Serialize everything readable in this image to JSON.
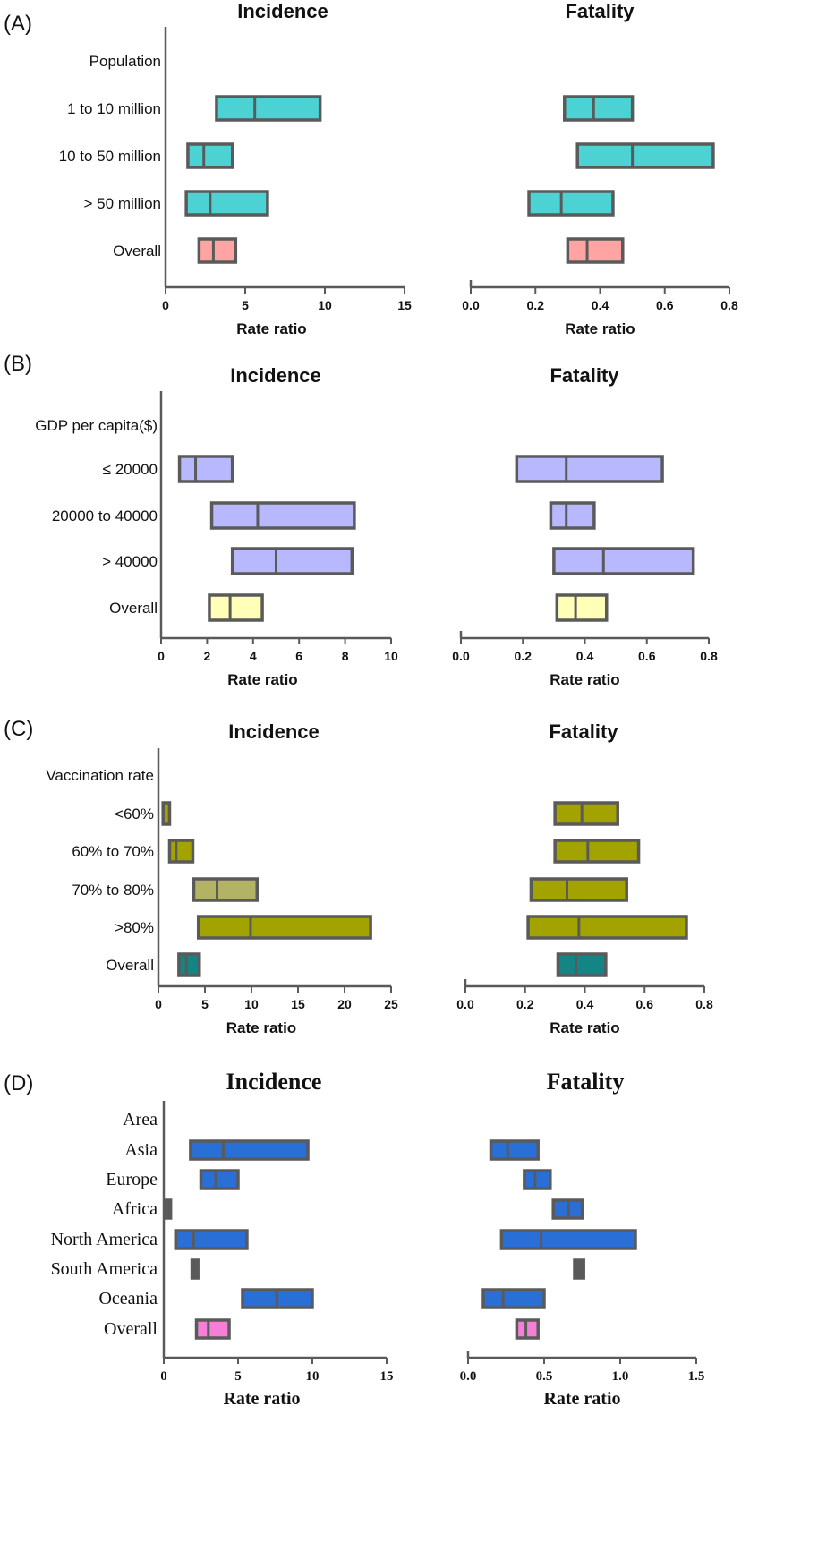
{
  "style": {
    "axis_color": "#5a5a5a",
    "box_stroke": "#5a5a5a"
  },
  "panels": [
    {
      "letter": "(A)",
      "category_header": "Population",
      "categories": [
        "1 to 10 million",
        "10 to 50 million",
        "> 50 million",
        "Overall"
      ],
      "charts": [
        {
          "title": "Incidence",
          "xlabel": "Rate ratio",
          "xlim": [
            0,
            15
          ],
          "ticks": [
            0,
            5,
            10,
            15
          ],
          "tick_labels": [
            "0",
            "5",
            "10",
            "15"
          ],
          "boxes": [
            {
              "category": "1 to 10 million",
              "low": 3.2,
              "mid": 5.6,
              "high": 9.7,
              "color": "#4dd2d3"
            },
            {
              "category": "10 to 50 million",
              "low": 1.4,
              "mid": 2.4,
              "high": 4.2,
              "color": "#4dd2d3"
            },
            {
              "category": "> 50 million",
              "low": 1.3,
              "mid": 2.8,
              "high": 6.4,
              "color": "#4dd2d3"
            },
            {
              "category": "Overall",
              "low": 2.1,
              "mid": 3.0,
              "high": 4.4,
              "color": "#ffa3a3"
            }
          ]
        },
        {
          "title": "Fatality",
          "xlabel": "Rate ratio",
          "xlim": [
            0,
            0.8
          ],
          "ticks": [
            0,
            0.2,
            0.4,
            0.6,
            0.8
          ],
          "tick_labels": [
            "0.0",
            "0.2",
            "0.4",
            "0.6",
            "0.8"
          ],
          "boxes": [
            {
              "category": "1 to 10 million",
              "low": 0.29,
              "mid": 0.38,
              "high": 0.5,
              "color": "#4dd2d3"
            },
            {
              "category": "10 to 50 million",
              "low": 0.33,
              "mid": 0.5,
              "high": 0.75,
              "color": "#4dd2d3"
            },
            {
              "category": "> 50 million",
              "low": 0.18,
              "mid": 0.28,
              "high": 0.44,
              "color": "#4dd2d3"
            },
            {
              "category": "Overall",
              "low": 0.3,
              "mid": 0.36,
              "high": 0.47,
              "color": "#ffa3a3"
            }
          ]
        }
      ]
    },
    {
      "letter": "(B)",
      "category_header": "GDP per capita($)",
      "categories": [
        "≤ 20000",
        "20000 to 40000",
        "> 40000",
        "Overall"
      ],
      "charts": [
        {
          "title": "Incidence",
          "xlabel": "Rate ratio",
          "xlim": [
            0,
            10
          ],
          "ticks": [
            0,
            2,
            4,
            6,
            8,
            10
          ],
          "tick_labels": [
            "0",
            "2",
            "4",
            "6",
            "8",
            "10"
          ],
          "boxes": [
            {
              "category": "≤ 20000",
              "low": 0.8,
              "mid": 1.5,
              "high": 3.1,
              "color": "#b8b8ff"
            },
            {
              "category": "20000 to 40000",
              "low": 2.2,
              "mid": 4.2,
              "high": 8.4,
              "color": "#b8b8ff"
            },
            {
              "category": "> 40000",
              "low": 3.1,
              "mid": 5.0,
              "high": 8.3,
              "color": "#b8b8ff"
            },
            {
              "category": "Overall",
              "low": 2.1,
              "mid": 3.0,
              "high": 4.4,
              "color": "#ffffb8"
            }
          ]
        },
        {
          "title": "Fatality",
          "xlabel": "Rate ratio",
          "xlim": [
            0,
            0.8
          ],
          "ticks": [
            0,
            0.2,
            0.4,
            0.6,
            0.8
          ],
          "tick_labels": [
            "0.0",
            "0.2",
            "0.4",
            "0.6",
            "0.8"
          ],
          "boxes": [
            {
              "category": "≤ 20000",
              "low": 0.18,
              "mid": 0.34,
              "high": 0.65,
              "color": "#b8b8ff"
            },
            {
              "category": "20000 to 40000",
              "low": 0.29,
              "mid": 0.34,
              "high": 0.43,
              "color": "#b8b8ff"
            },
            {
              "category": "> 40000",
              "low": 0.3,
              "mid": 0.46,
              "high": 0.75,
              "color": "#b8b8ff"
            },
            {
              "category": "Overall",
              "low": 0.31,
              "mid": 0.37,
              "high": 0.47,
              "color": "#ffffb8"
            }
          ]
        }
      ]
    },
    {
      "letter": "(C)",
      "category_header": "Vaccination rate",
      "categories": [
        "<60%",
        "60% to 70%",
        "70% to 80%",
        ">80%",
        "Overall"
      ],
      "charts": [
        {
          "title": "Incidence",
          "xlabel": "Rate ratio",
          "xlim": [
            0,
            25
          ],
          "ticks": [
            0,
            5,
            10,
            15,
            20,
            25
          ],
          "tick_labels": [
            "0",
            "5",
            "10",
            "15",
            "20",
            "25"
          ],
          "boxes": [
            {
              "category": "<60%",
              "low": 0.5,
              "mid": 0.9,
              "high": 1.2,
              "color": "#a3a300"
            },
            {
              "category": "60% to 70%",
              "low": 1.2,
              "mid": 1.9,
              "high": 3.7,
              "color": "#a3a300"
            },
            {
              "category": "70% to 80%",
              "low": 3.8,
              "mid": 6.3,
              "high": 10.6,
              "color": "#b3b366"
            },
            {
              "category": ">80%",
              "low": 4.3,
              "mid": 9.9,
              "high": 22.8,
              "color": "#a3a300"
            },
            {
              "category": "Overall",
              "low": 2.2,
              "mid": 3.0,
              "high": 4.4,
              "color": "#138585"
            }
          ]
        },
        {
          "title": "Fatality",
          "xlabel": "Rate ratio",
          "xlim": [
            0,
            0.8
          ],
          "ticks": [
            0,
            0.2,
            0.4,
            0.6,
            0.8
          ],
          "tick_labels": [
            "0.0",
            "0.2",
            "0.4",
            "0.6",
            "0.8"
          ],
          "boxes": [
            {
              "category": "<60%",
              "low": 0.3,
              "mid": 0.39,
              "high": 0.51,
              "color": "#a3a300"
            },
            {
              "category": "60% to 70%",
              "low": 0.3,
              "mid": 0.41,
              "high": 0.58,
              "color": "#a3a300"
            },
            {
              "category": "70% to 80%",
              "low": 0.22,
              "mid": 0.34,
              "high": 0.54,
              "color": "#a3a300"
            },
            {
              "category": ">80%",
              "low": 0.21,
              "mid": 0.38,
              "high": 0.74,
              "color": "#a3a300"
            },
            {
              "category": "Overall",
              "low": 0.31,
              "mid": 0.37,
              "high": 0.47,
              "color": "#138585"
            }
          ]
        }
      ]
    },
    {
      "letter": "(D)",
      "category_header": "Area",
      "categories": [
        "Asia",
        "Europe",
        "Africa",
        "North America",
        "South America",
        "Oceania",
        "Overall"
      ],
      "charts": [
        {
          "title": "Incidence",
          "xlabel": "Rate ratio",
          "xlim": [
            0,
            15
          ],
          "ticks": [
            0,
            5,
            10,
            15
          ],
          "tick_labels": [
            "0",
            "5",
            "10",
            "15"
          ],
          "boxes": [
            {
              "category": "Asia",
              "low": 1.8,
              "mid": 4.0,
              "high": 9.7,
              "color": "#2a6fd6"
            },
            {
              "category": "Europe",
              "low": 2.5,
              "mid": 3.5,
              "high": 5.0,
              "color": "#2a6fd6"
            },
            {
              "category": "Africa",
              "low": 0.1,
              "mid": 0.25,
              "high": 0.4,
              "color": "#5a5a5a"
            },
            {
              "category": "North America",
              "low": 0.8,
              "mid": 2.0,
              "high": 5.6,
              "color": "#2a6fd6"
            },
            {
              "category": "South America",
              "low": 1.9,
              "mid": 2.1,
              "high": 2.3,
              "color": "#5a5a5a"
            },
            {
              "category": "Oceania",
              "low": 5.3,
              "mid": 7.6,
              "high": 10.0,
              "color": "#2a6fd6"
            },
            {
              "category": "Overall",
              "low": 2.2,
              "mid": 3.0,
              "high": 4.4,
              "color": "#f57fd6"
            }
          ]
        },
        {
          "title": "Fatality",
          "xlabel": "Rate ratio",
          "xlim": [
            0,
            1.5
          ],
          "ticks": [
            0,
            0.5,
            1.0,
            1.5
          ],
          "tick_labels": [
            "0.0",
            "0.5",
            "1.0",
            "1.5"
          ],
          "boxes": [
            {
              "category": "Asia",
              "low": 0.15,
              "mid": 0.26,
              "high": 0.46,
              "color": "#2a6fd6"
            },
            {
              "category": "Europe",
              "low": 0.37,
              "mid": 0.44,
              "high": 0.54,
              "color": "#2a6fd6"
            },
            {
              "category": "Africa",
              "low": 0.56,
              "mid": 0.66,
              "high": 0.75,
              "color": "#2a6fd6"
            },
            {
              "category": "North America",
              "low": 0.22,
              "mid": 0.48,
              "high": 1.1,
              "color": "#2a6fd6"
            },
            {
              "category": "South America",
              "low": 0.7,
              "mid": 0.73,
              "high": 0.76,
              "color": "#5a5a5a"
            },
            {
              "category": "Oceania",
              "low": 0.1,
              "mid": 0.23,
              "high": 0.5,
              "color": "#2a6fd6"
            },
            {
              "category": "Overall",
              "low": 0.32,
              "mid": 0.38,
              "high": 0.46,
              "color": "#f57fd6"
            }
          ]
        }
      ]
    }
  ],
  "chart_data": [
    {
      "type": "bar",
      "title": "Incidence",
      "xlabel": "Rate ratio",
      "categories": [
        "1 to 10 million",
        "10 to 50 million",
        "> 50 million",
        "Overall"
      ],
      "series": [
        {
          "values": [
            [
              3.2,
              5.6,
              9.7
            ],
            [
              1.4,
              2.4,
              4.2
            ],
            [
              1.3,
              2.8,
              6.4
            ],
            [
              2.1,
              3.0,
              4.4
            ]
          ]
        }
      ],
      "xlim": [
        0,
        15
      ]
    },
    {
      "type": "bar",
      "title": "Fatality",
      "xlabel": "Rate ratio",
      "categories": [
        "1 to 10 million",
        "10 to 50 million",
        "> 50 million",
        "Overall"
      ],
      "series": [
        {
          "values": [
            [
              0.29,
              0.38,
              0.5
            ],
            [
              0.33,
              0.5,
              0.75
            ],
            [
              0.18,
              0.28,
              0.44
            ],
            [
              0.3,
              0.36,
              0.47
            ]
          ]
        }
      ],
      "xlim": [
        0,
        0.8
      ]
    },
    {
      "type": "bar",
      "title": "Incidence",
      "xlabel": "Rate ratio",
      "categories": [
        "≤ 20000",
        "20000 to 40000",
        "> 40000",
        "Overall"
      ],
      "series": [
        {
          "values": [
            [
              0.8,
              1.5,
              3.1
            ],
            [
              2.2,
              4.2,
              8.4
            ],
            [
              3.1,
              5.0,
              8.3
            ],
            [
              2.1,
              3.0,
              4.4
            ]
          ]
        }
      ],
      "xlim": [
        0,
        10
      ]
    },
    {
      "type": "bar",
      "title": "Fatality",
      "xlabel": "Rate ratio",
      "categories": [
        "≤ 20000",
        "20000 to 40000",
        "> 40000",
        "Overall"
      ],
      "series": [
        {
          "values": [
            [
              0.18,
              0.34,
              0.65
            ],
            [
              0.29,
              0.34,
              0.43
            ],
            [
              0.3,
              0.46,
              0.75
            ],
            [
              0.31,
              0.37,
              0.47
            ]
          ]
        }
      ],
      "xlim": [
        0,
        0.8
      ]
    },
    {
      "type": "bar",
      "title": "Incidence",
      "xlabel": "Rate ratio",
      "categories": [
        "<60%",
        "60% to 70%",
        "70% to 80%",
        ">80%",
        "Overall"
      ],
      "series": [
        {
          "values": [
            [
              0.5,
              0.9,
              1.2
            ],
            [
              1.2,
              1.9,
              3.7
            ],
            [
              3.8,
              6.3,
              10.6
            ],
            [
              4.3,
              9.9,
              22.8
            ],
            [
              2.2,
              3.0,
              4.4
            ]
          ]
        }
      ],
      "xlim": [
        0,
        25
      ]
    },
    {
      "type": "bar",
      "title": "Fatality",
      "xlabel": "Rate ratio",
      "categories": [
        "<60%",
        "60% to 70%",
        "70% to 80%",
        ">80%",
        "Overall"
      ],
      "series": [
        {
          "values": [
            [
              0.3,
              0.39,
              0.51
            ],
            [
              0.3,
              0.41,
              0.58
            ],
            [
              0.22,
              0.34,
              0.54
            ],
            [
              0.21,
              0.38,
              0.74
            ],
            [
              0.31,
              0.37,
              0.47
            ]
          ]
        }
      ],
      "xlim": [
        0,
        0.8
      ]
    },
    {
      "type": "bar",
      "title": "Incidence",
      "xlabel": "Rate ratio",
      "categories": [
        "Asia",
        "Europe",
        "Africa",
        "North America",
        "South America",
        "Oceania",
        "Overall"
      ],
      "series": [
        {
          "values": [
            [
              1.8,
              4.0,
              9.7
            ],
            [
              2.5,
              3.5,
              5.0
            ],
            [
              0.1,
              0.25,
              0.4
            ],
            [
              0.8,
              2.0,
              5.6
            ],
            [
              1.9,
              2.1,
              2.3
            ],
            [
              5.3,
              7.6,
              10.0
            ],
            [
              2.2,
              3.0,
              4.4
            ]
          ]
        }
      ],
      "xlim": [
        0,
        15
      ]
    },
    {
      "type": "bar",
      "title": "Fatality",
      "xlabel": "Rate ratio",
      "categories": [
        "Asia",
        "Europe",
        "Africa",
        "North America",
        "South America",
        "Oceania",
        "Overall"
      ],
      "series": [
        {
          "values": [
            [
              0.15,
              0.26,
              0.46
            ],
            [
              0.37,
              0.44,
              0.54
            ],
            [
              0.56,
              0.66,
              0.75
            ],
            [
              0.22,
              0.48,
              1.1
            ],
            [
              0.7,
              0.73,
              0.76
            ],
            [
              0.1,
              0.23,
              0.5
            ],
            [
              0.32,
              0.38,
              0.46
            ]
          ]
        }
      ],
      "xlim": [
        0,
        1.5
      ]
    }
  ]
}
